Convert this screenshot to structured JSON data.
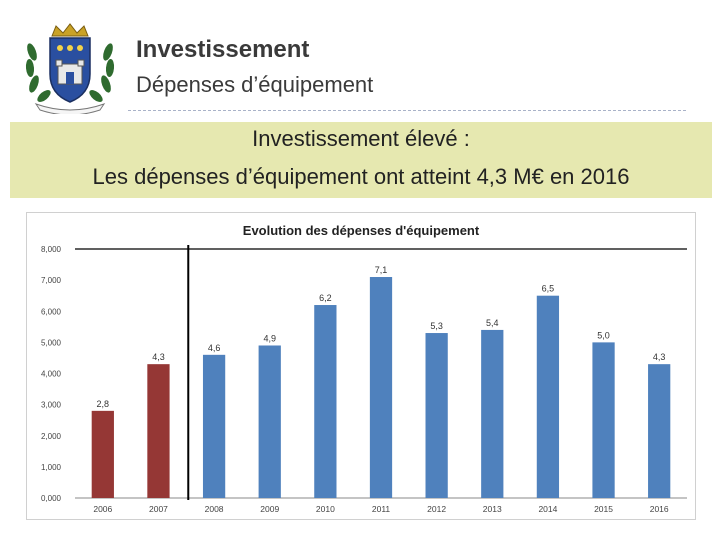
{
  "header": {
    "title": "Investissement",
    "subtitle": "Dépenses d’équipement"
  },
  "banner": {
    "line1": "Investissement élevé :",
    "line2": "Les dépenses d’équipement ont atteint 4,3 M€ en 2016"
  },
  "colors": {
    "historical_bar": "#953735",
    "recent_bar": "#4f81bd",
    "banner_bg": "#e6e8b0"
  },
  "chart_data": {
    "type": "bar",
    "title": "Evolution des dépenses d'équipement",
    "categories": [
      "2006",
      "2007",
      "2008",
      "2009",
      "2010",
      "2011",
      "2012",
      "2013",
      "2014",
      "2015",
      "2016"
    ],
    "values": [
      2.8,
      4.3,
      4.6,
      4.9,
      6.2,
      7.1,
      5.3,
      5.4,
      6.5,
      5.0,
      4.3
    ],
    "value_labels": [
      "2,8",
      "4,3",
      "4,6",
      "4,9",
      "6,2",
      "7,1",
      "5,3",
      "5,4",
      "6,5",
      "5,0",
      "4,3"
    ],
    "yticks": [
      "0,000",
      "1,000",
      "2,000",
      "3,000",
      "4,000",
      "5,000",
      "6,000",
      "7,000",
      "8,000"
    ],
    "ylim": [
      0,
      8
    ],
    "bar_colors": [
      "#953735",
      "#953735",
      "#4f81bd",
      "#4f81bd",
      "#4f81bd",
      "#4f81bd",
      "#4f81bd",
      "#4f81bd",
      "#4f81bd",
      "#4f81bd",
      "#4f81bd"
    ],
    "separator_after_category": "2007",
    "grid": false,
    "legend": "none"
  }
}
